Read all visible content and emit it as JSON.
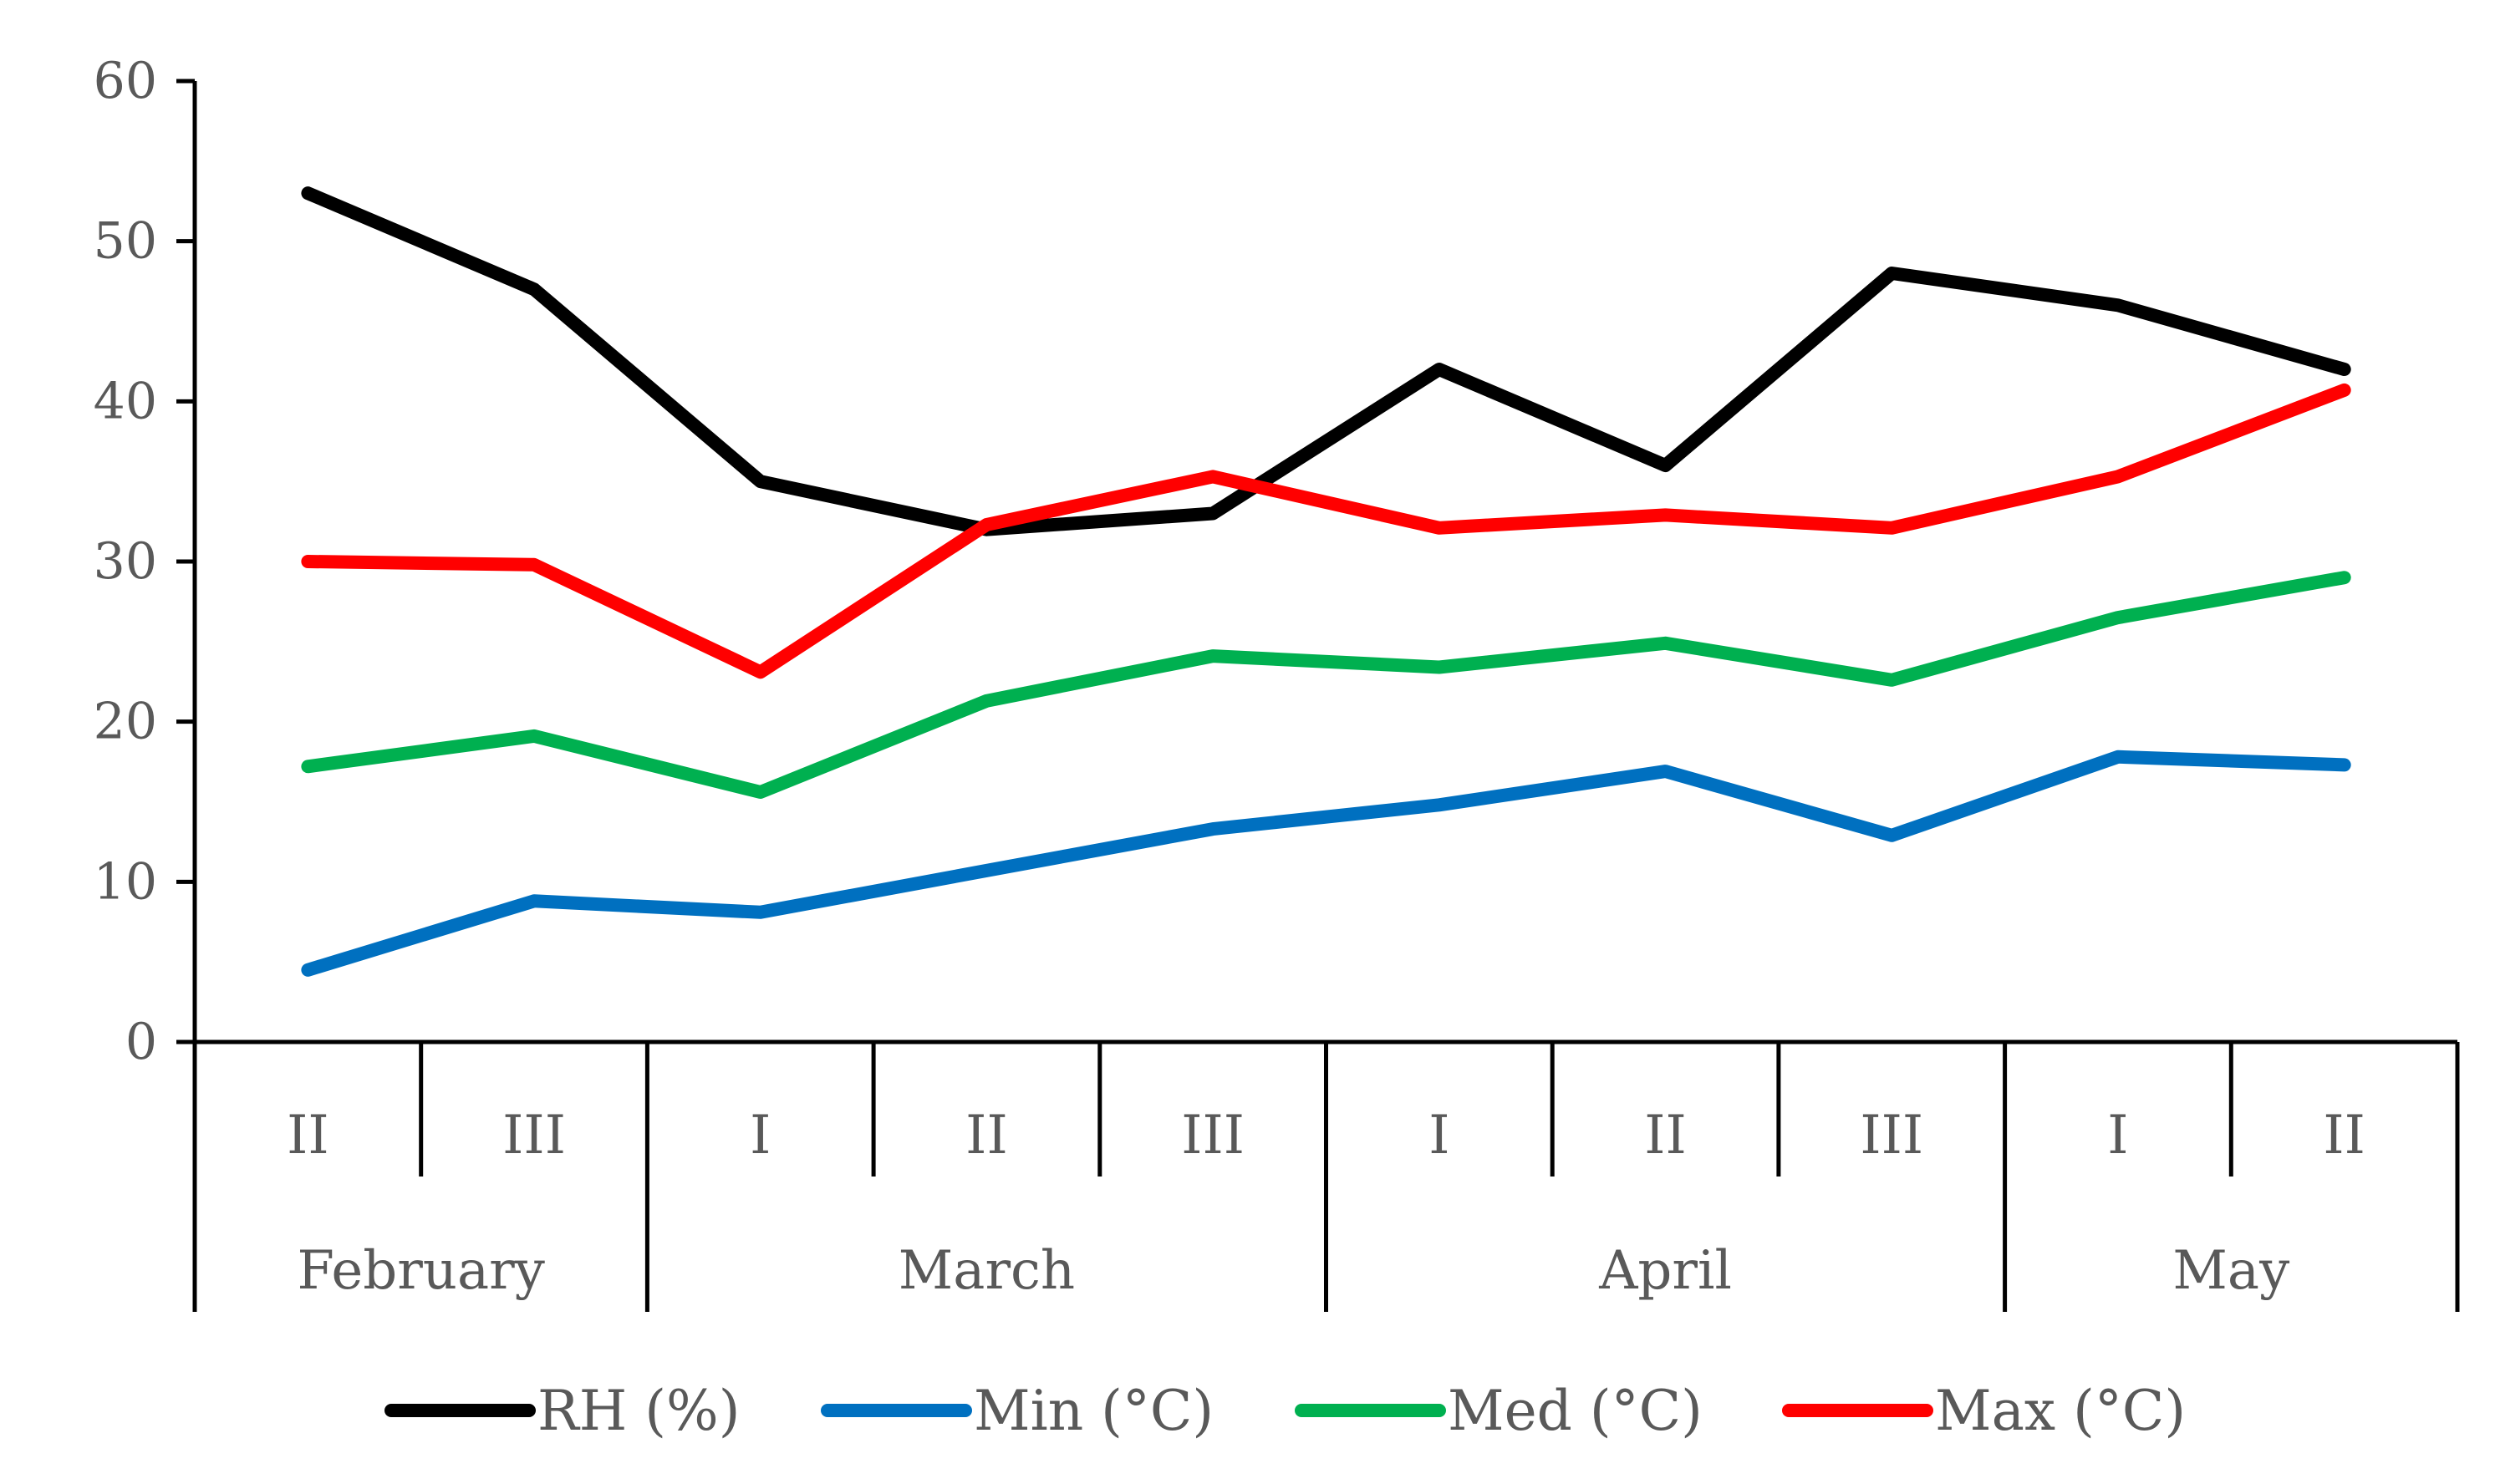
{
  "chart_data": {
    "type": "line",
    "title": "",
    "xlabel": "",
    "ylabel": "",
    "ylim": [
      0,
      60
    ],
    "yticks": [
      "0",
      "10",
      "20",
      "30",
      "40",
      "50",
      "60"
    ],
    "categories": [
      "II",
      "III",
      "I",
      "II",
      "III",
      "I",
      "II",
      "III",
      "I",
      "II"
    ],
    "months": [
      {
        "label": "February",
        "span": 2
      },
      {
        "label": "March",
        "span": 3
      },
      {
        "label": "April",
        "span": 3
      },
      {
        "label": "May",
        "span": 2
      }
    ],
    "series": [
      {
        "name": "RH (%)",
        "color": "#000000",
        "values": [
          53,
          47,
          35,
          32,
          33,
          42,
          36,
          48,
          46,
          42
        ]
      },
      {
        "name": "Min (°C)",
        "color": "#0070C0",
        "values": [
          4.5,
          8.8,
          8.1,
          10.7,
          13.3,
          14.8,
          16.9,
          12.9,
          17.8,
          17.3
        ]
      },
      {
        "name": "Med (°C)",
        "color": "#00B050",
        "values": [
          17.2,
          19.1,
          15.6,
          21.3,
          24.1,
          23.4,
          24.9,
          22.6,
          26.5,
          29.0
        ]
      },
      {
        "name": "Max (°C)",
        "color": "#FF0000",
        "values": [
          30.0,
          29.8,
          23.1,
          32.3,
          35.3,
          32.1,
          32.9,
          32.1,
          35.3,
          40.7
        ]
      }
    ],
    "legend_position": "bottom",
    "grid": false
  }
}
